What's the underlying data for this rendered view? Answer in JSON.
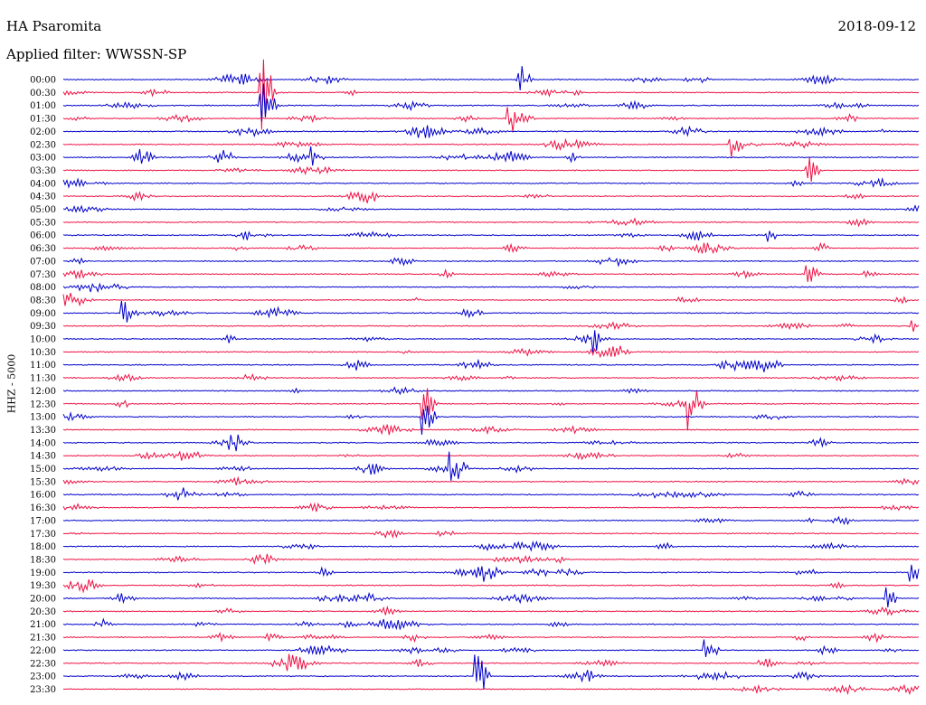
{
  "header": {
    "station": "HA Psaromita",
    "date": "2018-09-12",
    "filter": "Applied filter: WWSSN-SP"
  },
  "chart_data": {
    "type": "line",
    "title": "HA Psaromita",
    "ylabel": "HHZ - 5000",
    "row_labels": [
      "00:00",
      "00:30",
      "01:00",
      "01:30",
      "02:00",
      "02:30",
      "03:00",
      "03:30",
      "04:00",
      "04:30",
      "05:00",
      "05:30",
      "06:00",
      "06:30",
      "07:00",
      "07:30",
      "08:00",
      "08:30",
      "09:00",
      "09:30",
      "10:00",
      "10:30",
      "11:00",
      "11:30",
      "12:00",
      "12:30",
      "13:00",
      "13:30",
      "14:00",
      "14:30",
      "15:00",
      "15:30",
      "16:00",
      "16:30",
      "17:00",
      "17:30",
      "18:00",
      "18:30",
      "19:00",
      "19:30",
      "20:00",
      "20:30",
      "21:00",
      "21:30",
      "22:00",
      "22:30",
      "23:00",
      "23:30"
    ],
    "series_colors": [
      "#0000cc",
      "#ee1144"
    ],
    "events": [
      {
        "row": 0,
        "x": 0.53,
        "amp": 1.6
      },
      {
        "row": 1,
        "x": 0.23,
        "amp": 3.5
      },
      {
        "row": 2,
        "x": 0.23,
        "amp": 1.8
      },
      {
        "row": 3,
        "x": 0.52,
        "amp": 1.2
      },
      {
        "row": 5,
        "x": 0.78,
        "amp": 1.0
      },
      {
        "row": 6,
        "x": 0.09,
        "amp": 0.7
      },
      {
        "row": 6,
        "x": 0.29,
        "amp": 0.8
      },
      {
        "row": 7,
        "x": 0.87,
        "amp": 1.2
      },
      {
        "row": 12,
        "x": 0.82,
        "amp": 0.6
      },
      {
        "row": 15,
        "x": 0.87,
        "amp": 0.8
      },
      {
        "row": 18,
        "x": 0.07,
        "amp": 1.0
      },
      {
        "row": 19,
        "x": 0.99,
        "amp": 0.6
      },
      {
        "row": 20,
        "x": 0.62,
        "amp": 1.0
      },
      {
        "row": 25,
        "x": 0.42,
        "amp": 2.0
      },
      {
        "row": 25,
        "x": 0.73,
        "amp": 2.5
      },
      {
        "row": 26,
        "x": 0.42,
        "amp": 1.6
      },
      {
        "row": 30,
        "x": 0.45,
        "amp": 1.0
      },
      {
        "row": 38,
        "x": 0.49,
        "amp": 0.9
      },
      {
        "row": 38,
        "x": 0.99,
        "amp": 0.9
      },
      {
        "row": 40,
        "x": 0.96,
        "amp": 0.9
      },
      {
        "row": 44,
        "x": 0.75,
        "amp": 0.9
      },
      {
        "row": 46,
        "x": 0.48,
        "amp": 2.5
      }
    ]
  }
}
